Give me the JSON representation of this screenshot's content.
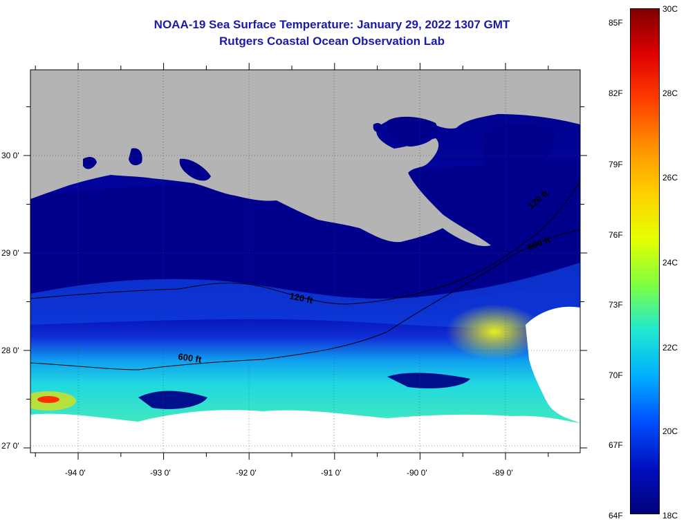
{
  "header": {
    "title": "NOAA-19 Sea Surface Temperature:  January 29, 2022 1307 GMT",
    "subtitle": "Rutgers Coastal Ocean Observation Lab"
  },
  "map": {
    "lon_labels": [
      "-94 0'",
      "-93 0'",
      "-92 0'",
      "-91 0'",
      "-90 0'",
      "-89 0'"
    ],
    "lat_labels": [
      "30 0'",
      "29 0'",
      "28 0'",
      "27 0'"
    ],
    "contour_labels": [
      "120 ft",
      "600 ft",
      "120 ft",
      "600 ft"
    ],
    "colors": {
      "land": "#b4b4b4",
      "cold_water": "#00008c",
      "cloud": "#ffffff"
    }
  },
  "colorbar": {
    "fahrenheit": [
      "85F",
      "82F",
      "79F",
      "76F",
      "73F",
      "70F",
      "67F",
      "64F"
    ],
    "celsius": [
      "30C",
      "28C",
      "26C",
      "24C",
      "22C",
      "20C",
      "18C"
    ],
    "stops": [
      "#7f0000",
      "#e00000",
      "#ff4000",
      "#ff9000",
      "#ffd000",
      "#e6ff00",
      "#80ff40",
      "#20e8d0",
      "#00b0ff",
      "#0050ff",
      "#0010c0",
      "#00007a"
    ]
  }
}
